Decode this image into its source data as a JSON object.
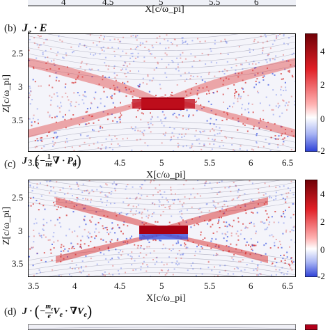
{
  "chart_data": [
    {
      "type": "heatmap",
      "panel_label": "(b)",
      "title": "J_e · E",
      "xlabel": "X[c/ω_pi]",
      "ylabel": "Z[c/ω_pi]",
      "xlim": [
        3.5,
        6.5
      ],
      "ylim": [
        3.8,
        2.2
      ],
      "xticks": [
        "3.5",
        "4",
        "4.5",
        "5",
        "5.5",
        "6",
        "6.5"
      ],
      "yticks": [
        "2.5",
        "3",
        "3.5"
      ],
      "colorbar": {
        "range": [
          -2,
          5
        ],
        "ticks": [
          "4",
          "2",
          "0",
          "-2"
        ],
        "colormap": "blue-white-red"
      },
      "features": {
        "x_point": [
          5.0,
          3.0
        ],
        "peak_value": 5
      },
      "colors": {
        "positive": "#b0001a",
        "negative": "#2b3fd6",
        "zero": "#ffffff"
      }
    },
    {
      "type": "heatmap",
      "panel_label": "(c)",
      "title": "J · (−(1/ne) ∇ · P_e)",
      "xlabel": "X[c/ω_pi]",
      "ylabel": "Z[c/ω_pi]",
      "xlim": [
        3.5,
        6.5
      ],
      "ylim": [
        3.8,
        2.2
      ],
      "xticks": [
        "3.5",
        "4",
        "4.5",
        "5",
        "5.5",
        "6",
        "6.5"
      ],
      "yticks": [
        "2.5",
        "3",
        "3.5"
      ],
      "colorbar": {
        "range": [
          -2,
          5
        ],
        "ticks": [
          "4",
          "2",
          "0",
          "-2"
        ],
        "colormap": "blue-white-red"
      },
      "features": {
        "x_point": [
          5.0,
          3.0
        ],
        "peak_value": 5
      }
    },
    {
      "type": "heatmap",
      "panel_label": "(d)",
      "title": "J · (−(m_e/e) V_e · ∇V_e)",
      "partial": true
    }
  ],
  "top_strip": {
    "xlabel": "X[c/ω_pi]",
    "xticks": [
      "4",
      "4.5",
      "5",
      "5.5",
      "6"
    ]
  },
  "labels": {
    "b": "(b)",
    "c": "(c)",
    "d": "(d)",
    "xlabel_b": "X[c/ω_pi]",
    "xlabel_c": "X[c/ω_pi]",
    "ylabel_b": "Z[c/ω_pi]",
    "ylabel_c": "Z[c/ω_pi]"
  }
}
